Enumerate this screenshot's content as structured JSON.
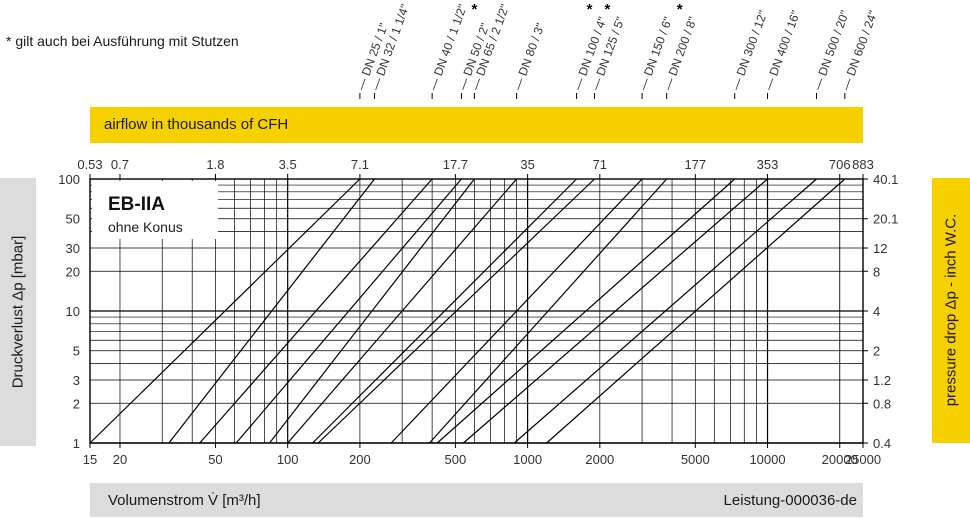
{
  "note": "* gilt auch bei Ausführung mit Stutzen",
  "cfh_label": "airflow in thousands of CFH",
  "flow_label": "Volumenstrom V̇ [m³/h]",
  "doc_id": "Leistung-000036-de",
  "left_axis_label": "Druckverlust Δp [mbar]",
  "right_axis_label": "pressure  drop Δp - inch W.C.",
  "chart_data": {
    "type": "line",
    "title": "EB-IIA",
    "subtitle": "ohne Konus",
    "xlabel": "Volumenstrom V̇ [m³/h]",
    "ylabel": "Druckverlust Δp [mbar]",
    "x_scale": "log",
    "y_scale": "log",
    "xlim": [
      15,
      25000
    ],
    "ylim": [
      1,
      100
    ],
    "grid": true,
    "x_ticks": [
      {
        "v": 15,
        "label": "15"
      },
      {
        "v": 20,
        "label": "20"
      },
      {
        "v": 50,
        "label": "50"
      },
      {
        "v": 100,
        "label": "100"
      },
      {
        "v": 200,
        "label": "200"
      },
      {
        "v": 500,
        "label": "500"
      },
      {
        "v": 1000,
        "label": "1000"
      },
      {
        "v": 2000,
        "label": "2000"
      },
      {
        "v": 5000,
        "label": "5000"
      },
      {
        "v": 10000,
        "label": "10000"
      },
      {
        "v": 20000,
        "label": "20000"
      },
      {
        "v": 25000,
        "label": "25000"
      }
    ],
    "y_ticks": [
      {
        "v": 1,
        "label": "1"
      },
      {
        "v": 2,
        "label": "2"
      },
      {
        "v": 3,
        "label": "3"
      },
      {
        "v": 5,
        "label": "5"
      },
      {
        "v": 10,
        "label": "10"
      },
      {
        "v": 20,
        "label": "20"
      },
      {
        "v": 30,
        "label": "30"
      },
      {
        "v": 50,
        "label": "50"
      },
      {
        "v": 100,
        "label": "100"
      }
    ],
    "top_ticks": [
      {
        "v": 15,
        "label": "0.53"
      },
      {
        "v": 20,
        "label": "0.7"
      },
      {
        "v": 50,
        "label": "1.8"
      },
      {
        "v": 100,
        "label": "3.5"
      },
      {
        "v": 200,
        "label": "7.1"
      },
      {
        "v": 500,
        "label": "17.7"
      },
      {
        "v": 1000,
        "label": "35"
      },
      {
        "v": 2000,
        "label": "71"
      },
      {
        "v": 5000,
        "label": "177"
      },
      {
        "v": 10000,
        "label": "353"
      },
      {
        "v": 20000,
        "label": "706"
      },
      {
        "v": 25000,
        "label": "883"
      }
    ],
    "right_ticks": [
      {
        "v": 1,
        "label": "0.4"
      },
      {
        "v": 2,
        "label": "0.8"
      },
      {
        "v": 3,
        "label": "1.2"
      },
      {
        "v": 5,
        "label": "2"
      },
      {
        "v": 10,
        "label": "4"
      },
      {
        "v": 20,
        "label": "8"
      },
      {
        "v": 30,
        "label": "12"
      },
      {
        "v": 50,
        "label": "20.1"
      },
      {
        "v": 100,
        "label": "40.1"
      }
    ],
    "series": [
      {
        "name": "DN 25 / 1\"",
        "star": false,
        "x": [
          15,
          200
        ],
        "y": [
          1,
          100
        ]
      },
      {
        "name": "DN 32 / 1 1/4\"",
        "star": false,
        "x": [
          32,
          230
        ],
        "y": [
          1,
          100
        ]
      },
      {
        "name": "DN 40 / 1 1/2\"",
        "star": false,
        "x": [
          43,
          400
        ],
        "y": [
          1,
          100
        ]
      },
      {
        "name": "DN 50 / 2\"",
        "star": true,
        "x": [
          61,
          530
        ],
        "y": [
          1,
          100
        ]
      },
      {
        "name": "DN 65 / 2 1/2\"",
        "star": false,
        "x": [
          84,
          600
        ],
        "y": [
          1,
          100
        ]
      },
      {
        "name": "DN 80 / 3\"",
        "star": false,
        "x": [
          100,
          900
        ],
        "y": [
          1,
          100
        ]
      },
      {
        "name": "DN 100 / 4\"",
        "star": true,
        "x": [
          127,
          1600
        ],
        "y": [
          1,
          100
        ]
      },
      {
        "name": "DN 125 / 5\"",
        "star": true,
        "x": [
          134,
          1900
        ],
        "y": [
          1,
          100
        ]
      },
      {
        "name": "DN 150 / 6\"",
        "star": false,
        "x": [
          270,
          3000
        ],
        "y": [
          1,
          100
        ]
      },
      {
        "name": "DN 200 / 8\"",
        "star": true,
        "x": [
          390,
          3800
        ],
        "y": [
          1,
          100
        ]
      },
      {
        "name": "DN 300 / 12\"",
        "star": false,
        "x": [
          420,
          7300
        ],
        "y": [
          1,
          100
        ]
      },
      {
        "name": "DN 400 / 16\"",
        "star": false,
        "x": [
          540,
          10000
        ],
        "y": [
          1,
          100
        ]
      },
      {
        "name": "DN 500 / 20\"",
        "star": false,
        "x": [
          880,
          16000
        ],
        "y": [
          1,
          100
        ]
      },
      {
        "name": "DN 600 / 24\"",
        "star": false,
        "x": [
          1200,
          21000
        ],
        "y": [
          1,
          100
        ]
      }
    ]
  }
}
